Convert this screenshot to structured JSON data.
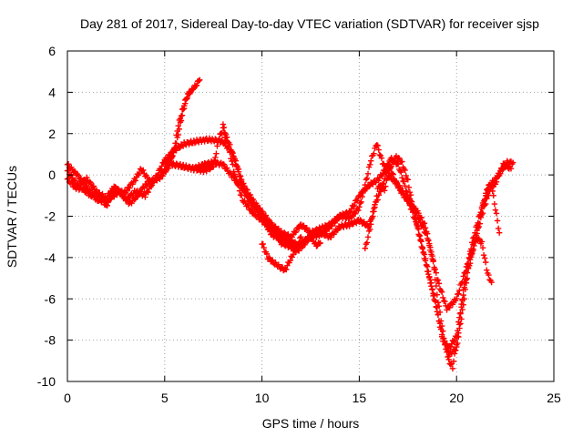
{
  "chart_data": {
    "type": "scatter",
    "title": "Day 281 of 2017, Sidereal Day-to-day VTEC variation (SDTVAR) for receiver sjsp",
    "xlabel": "GPS time / hours",
    "ylabel": "SDTVAR / TECUs",
    "xlim": [
      0,
      25
    ],
    "ylim": [
      -10,
      6
    ],
    "x_ticks": [
      0,
      5,
      10,
      15,
      20,
      25
    ],
    "y_ticks": [
      -10,
      -8,
      -6,
      -4,
      -2,
      0,
      2,
      4,
      6
    ],
    "x_tick_labels": [
      "0",
      "5",
      "10",
      "15",
      "20",
      "25"
    ],
    "y_tick_labels": [
      "-10",
      "-8",
      "-6",
      "-4",
      "-2",
      "0",
      "2",
      "4",
      "6"
    ],
    "grid": true,
    "marker": "+",
    "color": "#ff0000",
    "series": [
      {
        "name": "track-1",
        "points": [
          [
            0.0,
            0.5
          ],
          [
            0.5,
            0.0
          ],
          [
            1.0,
            -0.6
          ],
          [
            1.5,
            -1.2
          ],
          [
            2.0,
            -1.3
          ],
          [
            2.5,
            -0.9
          ],
          [
            3.0,
            -0.8
          ],
          [
            3.5,
            -0.2
          ],
          [
            3.8,
            0.3
          ],
          [
            4.2,
            -0.3
          ],
          [
            4.6,
            -0.2
          ],
          [
            5.0,
            0.2
          ],
          [
            5.3,
            0.7
          ],
          [
            5.6,
            1.5
          ],
          [
            5.8,
            2.5
          ],
          [
            6.0,
            3.3
          ],
          [
            6.2,
            3.9
          ],
          [
            6.5,
            4.2
          ],
          [
            6.8,
            4.6
          ]
        ]
      },
      {
        "name": "track-2",
        "points": [
          [
            0.0,
            0.2
          ],
          [
            0.5,
            -0.5
          ],
          [
            1.0,
            -0.2
          ],
          [
            1.5,
            -0.8
          ],
          [
            2.0,
            -1.5
          ],
          [
            2.5,
            -0.6
          ],
          [
            3.0,
            -1.2
          ],
          [
            3.5,
            -0.8
          ],
          [
            4.0,
            -1.0
          ],
          [
            4.5,
            -0.2
          ],
          [
            5.0,
            0.7
          ],
          [
            5.5,
            1.2
          ],
          [
            6.0,
            1.5
          ],
          [
            6.5,
            1.6
          ],
          [
            7.0,
            1.7
          ],
          [
            7.5,
            1.7
          ],
          [
            8.0,
            1.6
          ],
          [
            8.5,
            1.0
          ],
          [
            9.0,
            -0.4
          ],
          [
            9.5,
            -1.2
          ],
          [
            10.0,
            -1.8
          ],
          [
            10.5,
            -2.4
          ],
          [
            11.0,
            -2.8
          ],
          [
            11.5,
            -3.0
          ],
          [
            12.0,
            -2.4
          ],
          [
            12.5,
            -2.8
          ],
          [
            13.0,
            -2.6
          ],
          [
            13.5,
            -2.4
          ],
          [
            14.0,
            -2.0
          ],
          [
            14.5,
            -2.1
          ],
          [
            15.0,
            -1.6
          ],
          [
            15.3,
            -0.5
          ],
          [
            15.6,
            0.7
          ],
          [
            15.9,
            1.5
          ],
          [
            16.2,
            0.6
          ],
          [
            16.5,
            0.0
          ],
          [
            17.0,
            -0.5
          ],
          [
            17.5,
            -1.2
          ],
          [
            18.0,
            -2.5
          ],
          [
            18.5,
            -4.5
          ],
          [
            19.0,
            -6.5
          ],
          [
            19.3,
            -8.0
          ],
          [
            19.6,
            -8.4
          ],
          [
            20.0,
            -7.8
          ],
          [
            20.3,
            -6.0
          ],
          [
            20.6,
            -4.5
          ],
          [
            21.0,
            -3.0
          ],
          [
            21.3,
            -1.6
          ],
          [
            21.6,
            -0.6
          ],
          [
            22.0,
            -0.2
          ],
          [
            22.3,
            0.2
          ],
          [
            22.6,
            0.6
          ],
          [
            22.9,
            0.6
          ]
        ]
      },
      {
        "name": "track-3",
        "points": [
          [
            5.0,
            0.6
          ],
          [
            5.5,
            0.5
          ],
          [
            6.0,
            0.4
          ],
          [
            6.5,
            0.3
          ],
          [
            7.0,
            0.2
          ],
          [
            7.5,
            0.4
          ],
          [
            7.8,
            1.8
          ],
          [
            8.0,
            2.2
          ],
          [
            8.3,
            1.3
          ],
          [
            8.6,
            0.0
          ],
          [
            9.0,
            -1.2
          ],
          [
            9.5,
            -1.8
          ],
          [
            10.0,
            -2.2
          ],
          [
            10.5,
            -2.7
          ],
          [
            11.0,
            -3.0
          ],
          [
            11.5,
            -3.2
          ],
          [
            12.0,
            -3.5
          ],
          [
            12.5,
            -2.9
          ],
          [
            13.0,
            -2.8
          ],
          [
            13.5,
            -3.0
          ],
          [
            14.0,
            -2.5
          ],
          [
            14.5,
            -2.4
          ],
          [
            15.0,
            -2.2
          ],
          [
            15.5,
            -2.5
          ],
          [
            15.8,
            -1.5
          ],
          [
            16.2,
            -0.5
          ],
          [
            16.6,
            0.8
          ],
          [
            17.0,
            0.5
          ],
          [
            17.5,
            -1.0
          ],
          [
            18.0,
            -2.0
          ],
          [
            18.5,
            -3.0
          ],
          [
            19.0,
            -5.0
          ],
          [
            19.5,
            -6.5
          ],
          [
            20.0,
            -6.0
          ],
          [
            20.5,
            -4.5
          ],
          [
            21.0,
            -3.0
          ],
          [
            21.3,
            -3.3
          ],
          [
            21.6,
            -4.8
          ],
          [
            21.8,
            -5.2
          ]
        ]
      },
      {
        "name": "track-4",
        "points": [
          [
            5.0,
            0.7
          ],
          [
            5.5,
            0.5
          ],
          [
            6.0,
            0.4
          ],
          [
            6.5,
            0.3
          ],
          [
            7.0,
            0.5
          ],
          [
            7.5,
            0.6
          ],
          [
            8.0,
            0.5
          ],
          [
            8.5,
            -0.1
          ],
          [
            9.0,
            -0.6
          ],
          [
            9.5,
            -1.4
          ],
          [
            10.0,
            -1.9
          ],
          [
            10.5,
            -2.6
          ],
          [
            11.0,
            -3.3
          ],
          [
            11.5,
            -3.5
          ],
          [
            12.0,
            -3.3
          ],
          [
            12.5,
            -3.0
          ],
          [
            13.0,
            -2.9
          ],
          [
            13.5,
            -2.5
          ],
          [
            14.0,
            -2.0
          ],
          [
            14.5,
            -1.8
          ],
          [
            15.0,
            -1.0
          ],
          [
            15.5,
            -0.5
          ],
          [
            16.0,
            -0.2
          ],
          [
            16.5,
            0.5
          ],
          [
            17.0,
            -0.6
          ],
          [
            17.5,
            -1.3
          ],
          [
            18.0,
            -1.8
          ],
          [
            18.4,
            -2.5
          ],
          [
            18.8,
            -4.2
          ],
          [
            19.0,
            -5.8
          ],
          [
            19.3,
            -7.6
          ],
          [
            19.6,
            -9.0
          ],
          [
            19.8,
            -9.3
          ],
          [
            20.1,
            -7.6
          ],
          [
            20.4,
            -5.2
          ],
          [
            20.8,
            -3.3
          ],
          [
            21.2,
            -1.9
          ],
          [
            21.6,
            -0.8
          ],
          [
            22.0,
            -0.4
          ],
          [
            22.4,
            0.5
          ],
          [
            22.8,
            0.3
          ]
        ]
      },
      {
        "name": "track-5",
        "points": [
          [
            8.0,
            2.4
          ],
          [
            8.2,
            1.8
          ],
          [
            8.5,
            1.0
          ],
          [
            8.8,
            0.2
          ],
          [
            9.0,
            -0.6
          ],
          [
            9.4,
            -1.3
          ],
          [
            9.8,
            -1.7
          ],
          [
            10.2,
            -2.4
          ],
          [
            10.5,
            -2.9
          ],
          [
            11.0,
            -3.1
          ],
          [
            11.4,
            -3.3
          ],
          [
            11.8,
            -3.7
          ],
          [
            12.2,
            -3.3
          ],
          [
            12.5,
            -3.0
          ],
          [
            12.8,
            -3.4
          ],
          [
            13.0,
            -3.3
          ]
        ]
      },
      {
        "name": "track-6",
        "points": [
          [
            10.0,
            -3.3
          ],
          [
            10.3,
            -4.0
          ],
          [
            10.8,
            -4.4
          ],
          [
            11.2,
            -4.6
          ],
          [
            11.5,
            -4.0
          ],
          [
            11.8,
            -3.5
          ],
          [
            12.0,
            -3.0
          ]
        ]
      },
      {
        "name": "track-7",
        "points": [
          [
            15.3,
            -3.6
          ],
          [
            15.6,
            -2.4
          ],
          [
            15.8,
            -1.5
          ],
          [
            16.0,
            -0.5
          ],
          [
            16.3,
            -0.7
          ],
          [
            16.6,
            0.4
          ],
          [
            16.9,
            0.9
          ],
          [
            17.2,
            0.6
          ],
          [
            17.5,
            -0.3
          ],
          [
            17.8,
            -1.8
          ],
          [
            18.1,
            -3.0
          ],
          [
            18.4,
            -4.2
          ],
          [
            18.7,
            -5.4
          ],
          [
            19.0,
            -6.6
          ],
          [
            19.3,
            -8.0
          ],
          [
            19.6,
            -8.7
          ],
          [
            20.0,
            -8.4
          ],
          [
            20.3,
            -6.6
          ],
          [
            20.6,
            -4.6
          ],
          [
            21.0,
            -3.0
          ],
          [
            21.4,
            -1.6
          ],
          [
            21.8,
            -0.5
          ],
          [
            22.2,
            -2.8
          ]
        ]
      },
      {
        "name": "track-8",
        "points": [
          [
            0.0,
            -0.2
          ],
          [
            0.4,
            -0.6
          ],
          [
            0.8,
            -0.7
          ],
          [
            1.2,
            -1.0
          ],
          [
            1.6,
            -0.9
          ],
          [
            2.0,
            -1.1
          ],
          [
            2.4,
            -0.6
          ],
          [
            2.8,
            -0.9
          ],
          [
            3.2,
            -1.4
          ],
          [
            3.6,
            -1.0
          ],
          [
            4.0,
            -0.5
          ],
          [
            4.4,
            -0.3
          ],
          [
            4.8,
            -0.1
          ],
          [
            5.2,
            0.4
          ],
          [
            5.5,
            1.3
          ],
          [
            5.7,
            2.4
          ],
          [
            5.9,
            3.1
          ],
          [
            6.1,
            3.7
          ],
          [
            6.3,
            4.0
          ]
        ]
      }
    ]
  }
}
